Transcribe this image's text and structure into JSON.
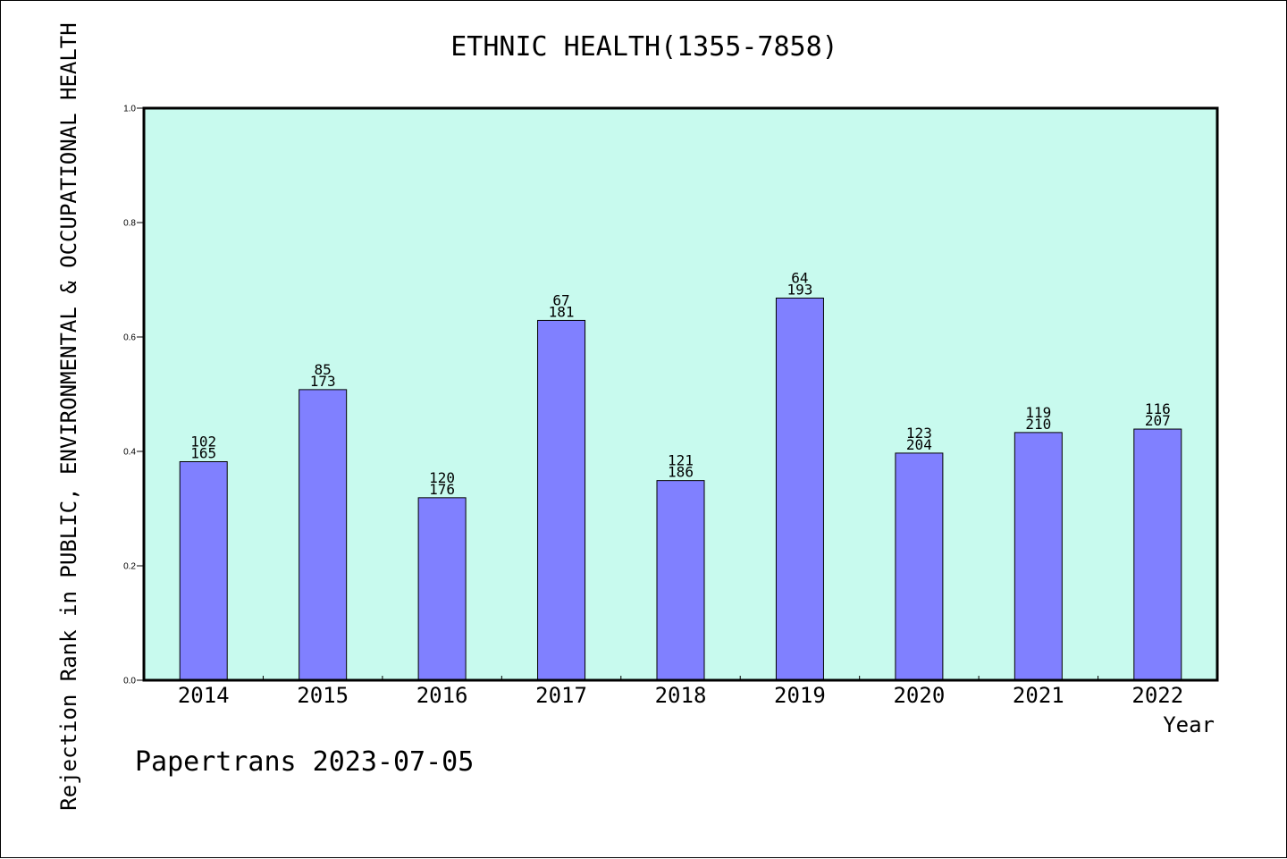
{
  "chart_data": {
    "type": "bar",
    "title": "ETHNIC HEALTH(1355-7858)",
    "xlabel": "Year",
    "ylabel": "Rejection Rank in PUBLIC, ENVIRONMENTAL & OCCUPATIONAL HEALTH",
    "ylim": [
      0,
      1.0
    ],
    "yticks": [
      "0.0",
      "0.2",
      "0.4",
      "0.6",
      "0.8",
      "1.0"
    ],
    "categories": [
      "2014",
      "2015",
      "2016",
      "2017",
      "2018",
      "2019",
      "2020",
      "2021",
      "2022"
    ],
    "values": [
      0.382,
      0.508,
      0.319,
      0.629,
      0.349,
      0.668,
      0.397,
      0.433,
      0.439
    ],
    "rank_labels": [
      "102",
      "85",
      "120",
      "67",
      "121",
      "64",
      "123",
      "119",
      "116"
    ],
    "total_labels": [
      "165",
      "173",
      "176",
      "181",
      "186",
      "193",
      "204",
      "210",
      "207"
    ],
    "grid": false,
    "legend": "none",
    "colors": {
      "plot_background": "#c8faee",
      "bar_fill": "#8080ff",
      "bar_stroke": "#000000"
    }
  },
  "footer": "Papertrans 2023-07-05"
}
